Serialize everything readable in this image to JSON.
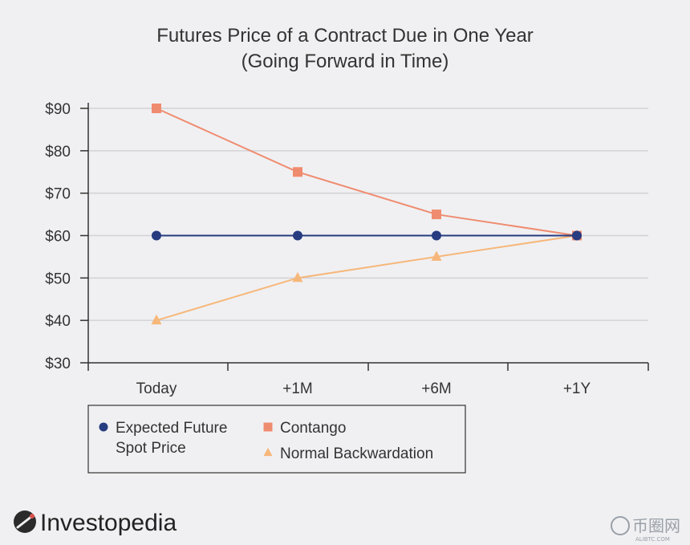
{
  "chart_data": {
    "type": "line",
    "title": [
      "Futures Price of a Contract Due in One Year",
      "(Going Forward in Time)"
    ],
    "categories": [
      "Today",
      "+1M",
      "+6M",
      "+1Y"
    ],
    "y_ticks": [
      "$30",
      "$40",
      "$50",
      "$60",
      "$70",
      "$80",
      "$90"
    ],
    "ylim": [
      30,
      90
    ],
    "grid": "horizontal",
    "legend_position": "bottom-left",
    "series": [
      {
        "name": [
          "Expected Future",
          "Spot Price"
        ],
        "marker": "circle",
        "color": "#263b80",
        "values": [
          60,
          60,
          60,
          60
        ]
      },
      {
        "name": [
          "Contango"
        ],
        "marker": "square",
        "color": "#ef8c70",
        "values": [
          90,
          75,
          65,
          60
        ]
      },
      {
        "name": [
          "Normal Backwardation"
        ],
        "marker": "triangle",
        "color": "#f6b77a",
        "values": [
          40,
          50,
          55,
          60
        ]
      }
    ]
  },
  "brand": {
    "name": "Investopedia"
  },
  "watermark": {
    "text": "币圈网",
    "sub": "ALIBTC.COM"
  }
}
